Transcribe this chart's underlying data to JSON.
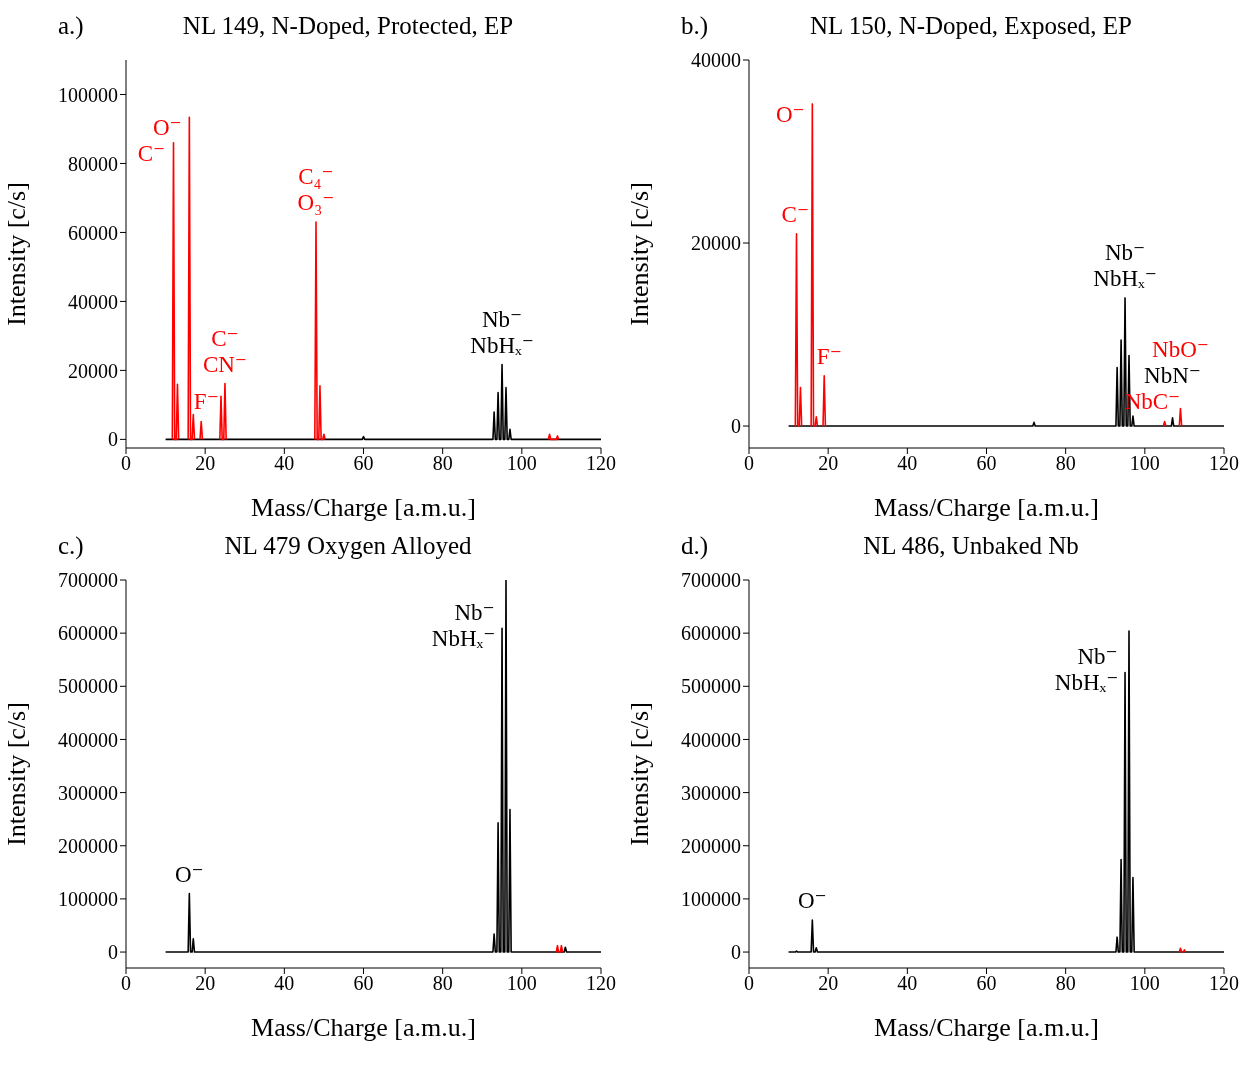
{
  "chart_data": [
    {
      "type": "line",
      "title": "NL 149, N-Doped, Protected, EP",
      "xlabel": "Mass/Charge [a.m.u.]",
      "ylabel": "Intensity [c/s]",
      "xlim": [
        0,
        120
      ],
      "xticks": [
        0,
        20,
        40,
        60,
        80,
        100,
        120
      ],
      "ylim": [
        -2500,
        110000
      ],
      "yticks": [
        0,
        20000,
        40000,
        60000,
        80000,
        100000
      ],
      "annotations": [
        "a.)",
        {
          "text": "C⁻",
          "x": 12,
          "y": 86000
        },
        {
          "text": "O⁻",
          "x": 16,
          "y": 93400
        },
        {
          "text": "F⁻",
          "x": 19,
          "y": 5200
        },
        {
          "text": "CN⁻",
          "x": 25,
          "y": 16200
        },
        {
          "text": "C⁻",
          "x": 25,
          "y": 16200
        },
        {
          "text": "O₃⁻",
          "x": 48,
          "y": 63000
        },
        {
          "text": "C₄⁻",
          "x": 48,
          "y": 63000
        },
        {
          "text": "NbHₓ⁻",
          "x": 95,
          "y": 21700
        },
        {
          "text": "Nb⁻",
          "x": 95,
          "y": 21700
        }
      ],
      "series": [
        {
          "color": "#000000",
          "x": [
            10,
            59.7,
            60,
            60.3,
            92.7,
            93,
            93.3,
            93.7,
            94,
            94.3,
            94.7,
            95,
            95.3,
            95.7,
            96,
            96.3,
            96.7,
            97,
            97.3,
            120
          ],
          "values": [
            0,
            0,
            800,
            0,
            0,
            7900,
            0,
            0,
            13600,
            0,
            0,
            21700,
            0,
            0,
            15000,
            0,
            0,
            2900,
            0,
            0
          ]
        },
        {
          "color": "#ff0000",
          "x": [
            11.7,
            12,
            12.3,
            12.7,
            13,
            13.3,
            14.5,
            15.7,
            16,
            16.3,
            16.7,
            17,
            17.3,
            18,
            18.7,
            19,
            19.3,
            21,
            23.7,
            24,
            24.3,
            24.7,
            25,
            25.3,
            36,
            47.7,
            48,
            48.3,
            48.7,
            49,
            49.3,
            49.7,
            50,
            50.3,
            78,
            106.7,
            107,
            107.3,
            108.7,
            109,
            109.3
          ],
          "values": [
            0,
            86000,
            0,
            0,
            16000,
            0,
            null,
            0,
            93400,
            0,
            0,
            7200,
            0,
            null,
            0,
            5200,
            0,
            null,
            0,
            12500,
            0,
            0,
            16200,
            0,
            null,
            0,
            63000,
            0,
            0,
            15500,
            0,
            0,
            1500,
            0,
            null,
            0,
            1500,
            0,
            0,
            1000,
            0
          ]
        }
      ]
    },
    {
      "type": "line",
      "title": "NL 150, N-Doped, Exposed, EP",
      "xlabel": "Mass/Charge [a.m.u.]",
      "ylabel": "Intensity [c/s]",
      "xlim": [
        0,
        120
      ],
      "xticks": [
        0,
        20,
        40,
        60,
        80,
        100,
        120
      ],
      "ylim": [
        -2400,
        40000
      ],
      "yticks": [
        0,
        20000,
        40000
      ],
      "annotations": [
        "b.)",
        {
          "text": "C⁻",
          "x": 12,
          "y": 21000
        },
        {
          "text": "O⁻",
          "x": 16,
          "y": 35200
        },
        {
          "text": "F⁻",
          "x": 19,
          "y": 5500
        },
        {
          "text": "NbHₓ⁻",
          "x": 95,
          "y": 14000
        },
        {
          "text": "Nb⁻",
          "x": 95,
          "y": 14000
        },
        {
          "text": "NbC⁻",
          "x": 105,
          "y": 500
        },
        {
          "text": "NbN⁻",
          "x": 107,
          "y": 900
        },
        {
          "text": "NbO⁻",
          "x": 109,
          "y": 1900
        }
      ],
      "series": [
        {
          "color": "#000000",
          "x": [
            10,
            71.7,
            72,
            72.3,
            92.7,
            93,
            93.3,
            93.7,
            94,
            94.3,
            94.7,
            95,
            95.3,
            95.7,
            96,
            96.3,
            96.7,
            97,
            97.3,
            106.7,
            107,
            107.3,
            120
          ],
          "values": [
            0,
            0,
            400,
            0,
            0,
            6400,
            0,
            0,
            9400,
            0,
            0,
            14000,
            0,
            0,
            7700,
            0,
            0,
            1100,
            0,
            0,
            900,
            0,
            0
          ]
        },
        {
          "color": "#ff0000",
          "x": [
            11.7,
            12,
            12.3,
            12.7,
            13,
            13.3,
            14.5,
            15.7,
            16,
            16.3,
            16.7,
            17,
            17.3,
            18,
            18.7,
            19,
            19.3,
            60,
            104.7,
            105,
            105.3,
            107,
            108.7,
            109,
            109.3
          ],
          "values": [
            0,
            21000,
            0,
            0,
            4200,
            0,
            null,
            0,
            35200,
            0,
            0,
            1000,
            0,
            null,
            0,
            5500,
            0,
            null,
            0,
            500,
            0,
            null,
            0,
            1900,
            0
          ]
        }
      ]
    },
    {
      "type": "line",
      "title": "NL 479 Oxygen Alloyed",
      "xlabel": "Mass/Charge [a.m.u.]",
      "ylabel": "Intensity [c/s]",
      "xlim": [
        0,
        120
      ],
      "xticks": [
        0,
        20,
        40,
        60,
        80,
        100,
        120
      ],
      "ylim": [
        -30000,
        700000
      ],
      "yticks": [
        0,
        100000,
        200000,
        300000,
        400000,
        500000,
        600000,
        700000
      ],
      "annotations": [
        "c.)",
        {
          "text": "O⁻",
          "x": 16,
          "y": 110000
        },
        {
          "text": "NbHₓ⁻",
          "x": 95,
          "y": 609000
        },
        {
          "text": "Nb⁻",
          "x": 95,
          "y": 609000
        }
      ],
      "series": [
        {
          "color": "#000000",
          "x": [
            10,
            15.7,
            16,
            16.3,
            16.7,
            17,
            17.3,
            92.7,
            93,
            93.3,
            93.7,
            94,
            94.3,
            94.7,
            95,
            95.3,
            95.7,
            96,
            96.3,
            96.7,
            97,
            97.3,
            110.7,
            111,
            111.3,
            120
          ],
          "values": [
            0,
            0,
            110000,
            0,
            0,
            25000,
            0,
            0,
            34000,
            0,
            0,
            243000,
            0,
            0,
            609000,
            0,
            0,
            700000,
            0,
            0,
            268000,
            0,
            0,
            9000,
            0,
            0
          ]
        },
        {
          "color": "#ff0000",
          "x": [
            108.7,
            109,
            109.3,
            109.7,
            110,
            110.3
          ],
          "values": [
            0,
            12000,
            0,
            0,
            12000,
            0
          ]
        }
      ]
    },
    {
      "type": "line",
      "title": "NL 486, Unbaked Nb",
      "xlabel": "Mass/Charge [a.m.u.]",
      "ylabel": "Intensity [c/s]",
      "xlim": [
        0,
        120
      ],
      "xticks": [
        0,
        20,
        40,
        60,
        80,
        100,
        120
      ],
      "ylim": [
        -30000,
        700000
      ],
      "yticks": [
        0,
        100000,
        200000,
        300000,
        400000,
        500000,
        600000,
        700000
      ],
      "annotations": [
        "d.)",
        {
          "text": "O⁻",
          "x": 16,
          "y": 60000
        },
        {
          "text": "NbHₓ⁻",
          "x": 95,
          "y": 526000
        },
        {
          "text": "Nb⁻",
          "x": 95,
          "y": 526000
        }
      ],
      "series": [
        {
          "color": "#000000",
          "x": [
            10,
            11.7,
            12,
            12.3,
            15.7,
            16,
            16.3,
            16.7,
            17,
            17.3,
            92.7,
            93,
            93.3,
            93.7,
            94,
            94.3,
            94.7,
            95,
            95.3,
            95.7,
            96,
            96.3,
            96.7,
            97,
            97.3,
            120
          ],
          "values": [
            0,
            0,
            2000,
            0,
            0,
            60000,
            0,
            0,
            8000,
            0,
            0,
            28000,
            0,
            0,
            174000,
            0,
            0,
            526000,
            0,
            0,
            604000,
            0,
            0,
            140000,
            0,
            0
          ]
        },
        {
          "color": "#ff0000",
          "x": [
            108.7,
            109,
            109.3,
            109.7,
            110,
            110.3
          ],
          "values": [
            0,
            7000,
            0,
            0,
            4000,
            0
          ]
        }
      ]
    }
  ]
}
